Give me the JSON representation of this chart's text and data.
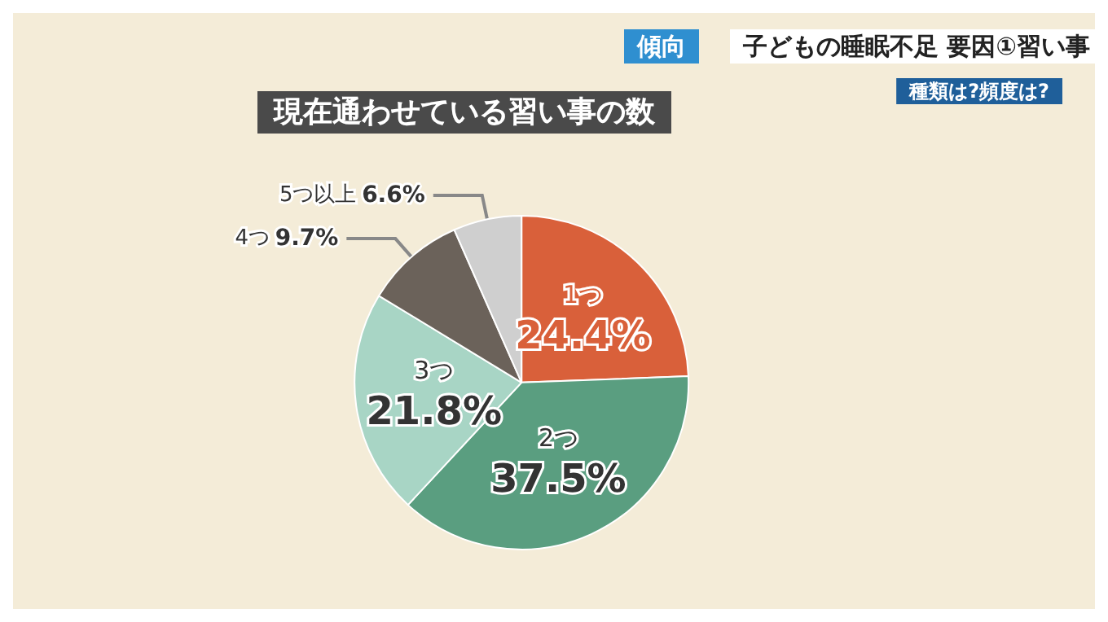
{
  "chart_data": {
    "type": "pie",
    "title": "現在通わせている習い事の数",
    "subtitle": "子どもの睡眠不足 要因①習い事",
    "annotations": [
      "傾向",
      "種類は?頻度は?"
    ],
    "categories": [
      "1つ",
      "2つ",
      "3つ",
      "4つ",
      "5つ以上"
    ],
    "values": [
      24.4,
      37.5,
      21.8,
      9.7,
      6.6
    ],
    "value_labels": [
      "24.4%",
      "37.5%",
      "21.8%",
      "9.7%",
      "6.6%"
    ],
    "colors": [
      "#d9603a",
      "#5a9e80",
      "#a8d5c5",
      "#6b625a",
      "#cfcfcf"
    ],
    "legend": false
  }
}
